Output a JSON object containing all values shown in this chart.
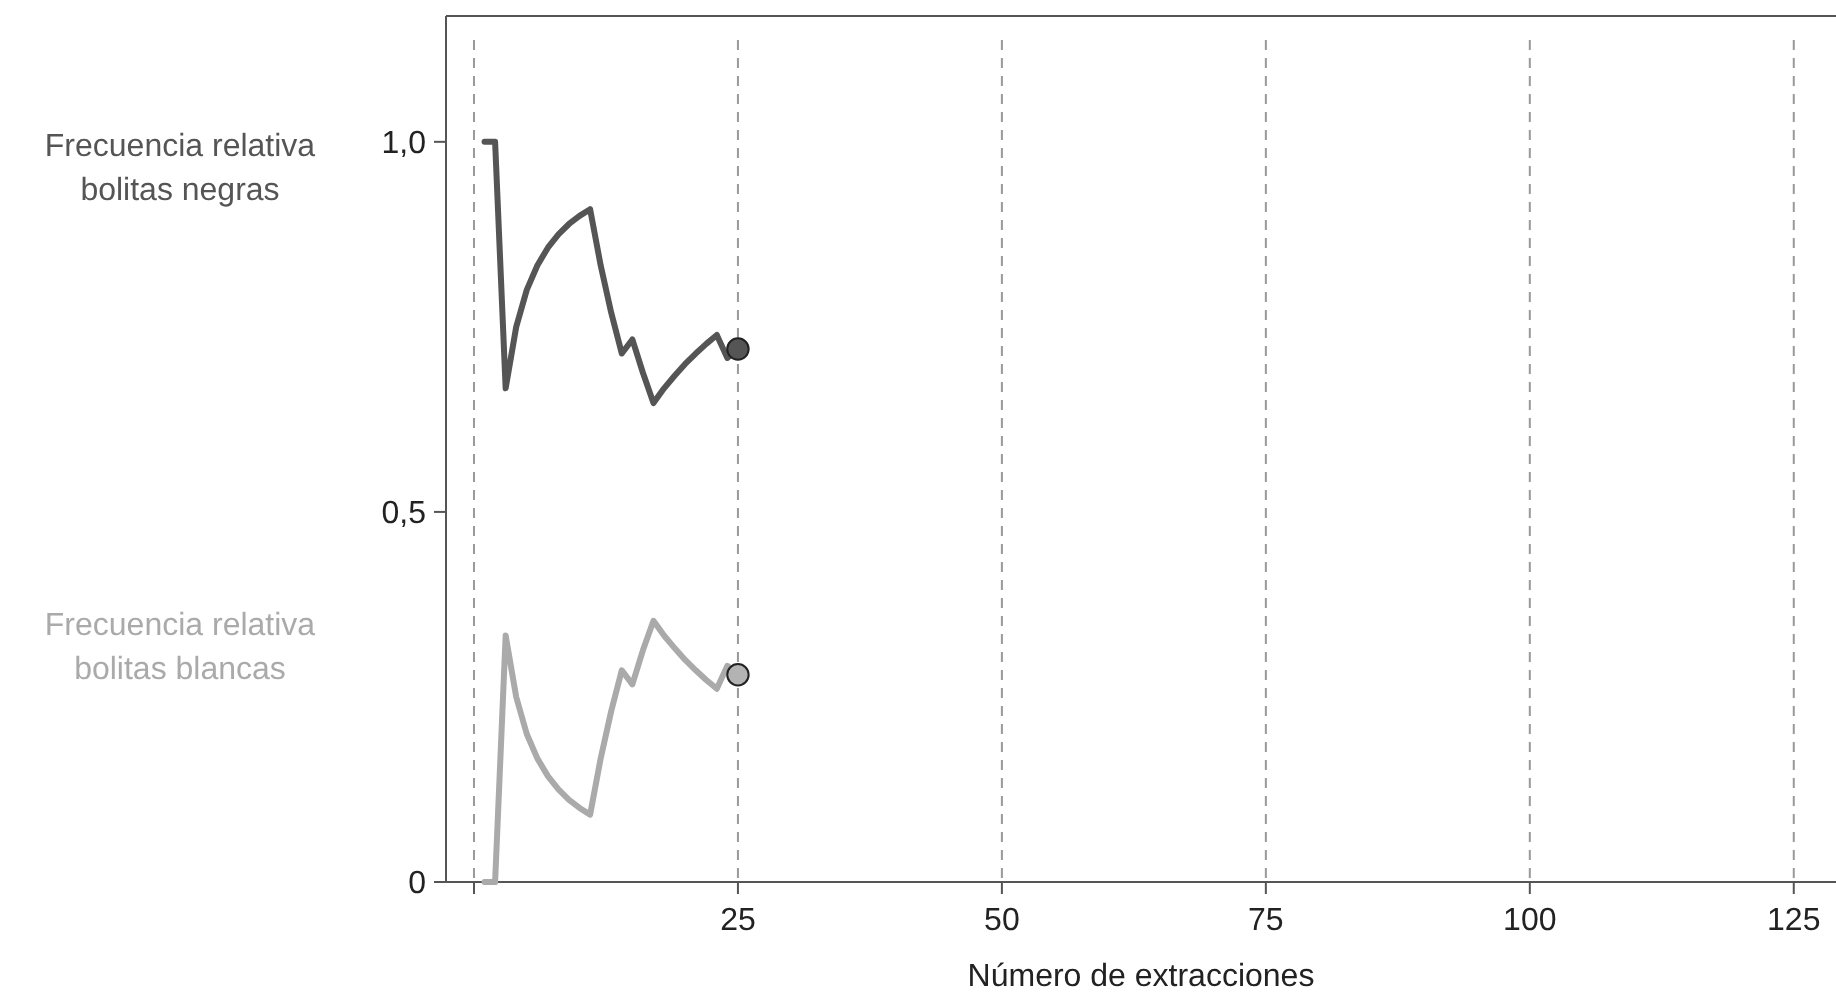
{
  "chart_data": {
    "type": "line",
    "xlabel": "Número de extracciones",
    "x": [
      1,
      2,
      3,
      4,
      5,
      6,
      7,
      8,
      9,
      10,
      11,
      12,
      13,
      14,
      15,
      16,
      17,
      18,
      19,
      20,
      21,
      22,
      23,
      24,
      25
    ],
    "series": [
      {
        "name": "Frecuencia relativa bolitas negras",
        "color": "#555555",
        "values": [
          1,
          1,
          0.667,
          0.75,
          0.8,
          0.833,
          0.857,
          0.875,
          0.889,
          0.9,
          0.909,
          0.833,
          0.769,
          0.714,
          0.733,
          0.688,
          0.647,
          0.667,
          0.684,
          0.7,
          0.714,
          0.727,
          0.739,
          0.708,
          0.72
        ]
      },
      {
        "name": "Frecuencia relativa bolitas blancas",
        "color": "#aaaaaa",
        "values": [
          0,
          0,
          0.333,
          0.25,
          0.2,
          0.167,
          0.143,
          0.125,
          0.111,
          0.1,
          0.091,
          0.167,
          0.231,
          0.286,
          0.267,
          0.313,
          0.353,
          0.333,
          0.316,
          0.3,
          0.286,
          0.273,
          0.261,
          0.292,
          0.28
        ]
      },
      {
        "type": "scatter",
        "x": [
          25
        ],
        "color": "#555555",
        "values": [
          0.72
        ],
        "marker": "circle"
      },
      {
        "type": "scatter",
        "x": [
          25
        ],
        "color": "#b3b3b3",
        "values": [
          0.28
        ],
        "marker": "circle"
      }
    ],
    "xlim": [
      -2.65,
      129
    ],
    "ylim": [
      0,
      1.17
    ],
    "xticks": [
      {
        "value": 0,
        "label": null
      },
      25,
      50,
      75,
      100,
      125
    ],
    "yticks": [
      0,
      {
        "value": 0.5,
        "label": "0,5"
      },
      {
        "value": 1,
        "label": "1,0"
      }
    ],
    "grid": "x",
    "legend": "left",
    "marker": "none",
    "line_style": "solid"
  }
}
